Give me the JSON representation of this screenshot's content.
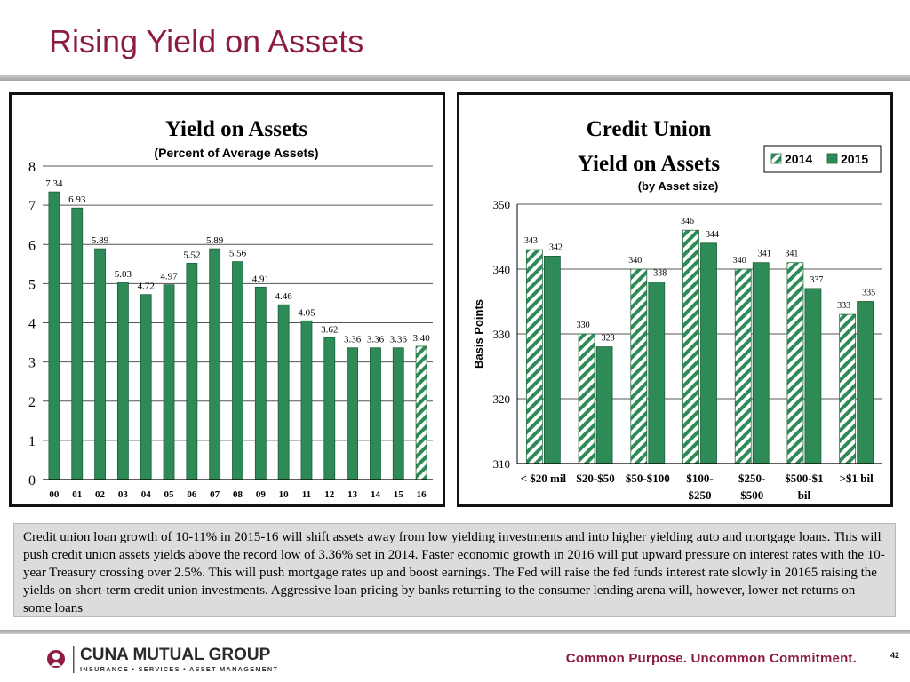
{
  "slide": {
    "title": "Rising Yield on Assets",
    "body_text": "Credit union loan growth of 10-11% in 2015-16 will shift assets away from low yielding investments and into higher yielding auto and mortgage loans.  This will push credit union assets yields above the record low of 3.36% set in 2014. Faster economic growth in 2016 will put upward pressure on interest rates with the 10-year Treasury crossing over 2.5%.  This will push mortgage rates up and boost earnings. The Fed will raise the fed funds interest rate slowly in 20165 raising the yields on short-term credit union investments.  Aggressive loan pricing by banks returning to the consumer lending arena will, however, lower net returns on some loans",
    "page_number": "42"
  },
  "footer": {
    "logo_name": "CUNA MUTUAL GROUP",
    "logo_subtext": "INSURANCE • SERVICES • ASSET MANAGEMENT",
    "tagline": "Common Purpose. Uncommon Commitment."
  },
  "colors": {
    "title": "#8c1d40",
    "bar_green": "#2e8b57",
    "hatch_stripe": "#2e8b57"
  },
  "chart_data": [
    {
      "type": "bar",
      "title": "Yield on Assets",
      "subtitle": "(Percent of Average Assets)",
      "categories": [
        "00",
        "01",
        "02",
        "03",
        "04",
        "05",
        "06",
        "07",
        "08",
        "09",
        "10",
        "11",
        "12",
        "13",
        "14",
        "15",
        "16"
      ],
      "values": [
        7.34,
        6.93,
        5.89,
        5.03,
        4.72,
        4.97,
        5.52,
        5.89,
        5.56,
        4.91,
        4.46,
        4.05,
        3.62,
        3.36,
        3.36,
        3.36,
        3.4
      ],
      "value_labels": [
        "7.34",
        "6.93",
        "5.89",
        "5.03",
        "4.72",
        "4.97",
        "5.52",
        "5.89",
        "5.56",
        "4.91",
        "4.46",
        "4.05",
        "3.62",
        "3.36",
        "3.36",
        "3.36",
        "3.40"
      ],
      "forecast_categories": [
        "16"
      ],
      "ylim": [
        0,
        8
      ],
      "yticks": [
        "0",
        "1",
        "2",
        "3",
        "4",
        "5",
        "6",
        "7",
        "8"
      ],
      "xlabel": "",
      "ylabel": "",
      "grid": true
    },
    {
      "type": "bar",
      "title": "Credit Union",
      "title_line2": "Yield on Assets",
      "subtitle": "(by Asset size)",
      "categories": [
        "< $20 mil",
        "$20-$50",
        "$50-$100",
        "$100-$250",
        "$250-$500",
        "$500-$1 bil",
        ">$1 bil"
      ],
      "category_lines": [
        [
          "< $20 mil"
        ],
        [
          "$20-$50"
        ],
        [
          "$50-$100"
        ],
        [
          "$100-",
          "$250"
        ],
        [
          "$250-",
          "$500"
        ],
        [
          "$500-$1",
          "bil"
        ],
        [
          ">$1 bil"
        ]
      ],
      "series": [
        {
          "name": "2014",
          "values": [
            343,
            330,
            340,
            346,
            340,
            341,
            333
          ],
          "style": "hatched"
        },
        {
          "name": "2015",
          "values": [
            342,
            328,
            338,
            344,
            341,
            337,
            335
          ],
          "style": "solid"
        }
      ],
      "ylim": [
        310,
        350
      ],
      "yticks": [
        "310",
        "320",
        "330",
        "340",
        "350"
      ],
      "ylabel": "Basis Points",
      "xlabel": "",
      "legend": "top-right",
      "grid": true
    }
  ]
}
